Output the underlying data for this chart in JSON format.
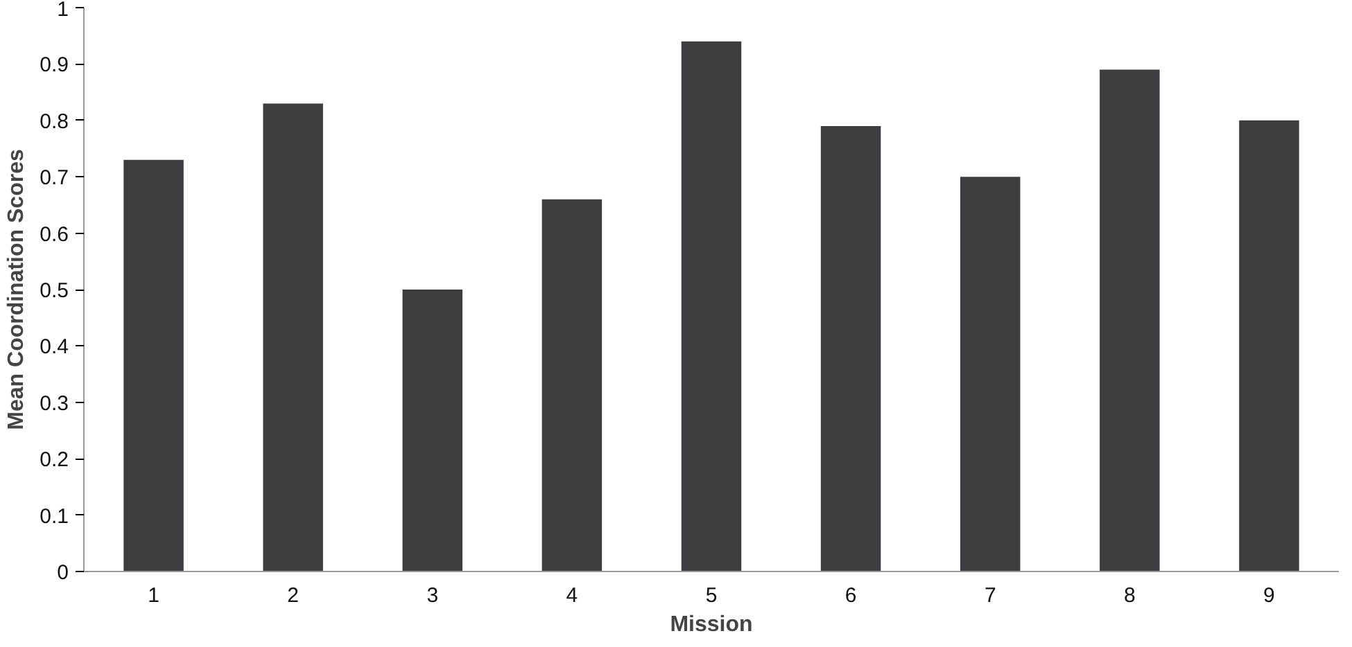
{
  "chart_data": {
    "type": "bar",
    "xlabel": "Mission",
    "ylabel": "Mean Coordination Scores",
    "categories": [
      "1",
      "2",
      "3",
      "4",
      "5",
      "6",
      "7",
      "8",
      "9"
    ],
    "values": [
      0.73,
      0.83,
      0.5,
      0.66,
      0.94,
      0.79,
      0.7,
      0.89,
      0.8
    ],
    "color": "#3d3d40",
    "ylim": [
      0,
      1
    ],
    "yticks": [
      0,
      0.1,
      0.2,
      0.3,
      0.4,
      0.5,
      0.6,
      0.7,
      0.8,
      0.9,
      1
    ],
    "grid": false
  }
}
